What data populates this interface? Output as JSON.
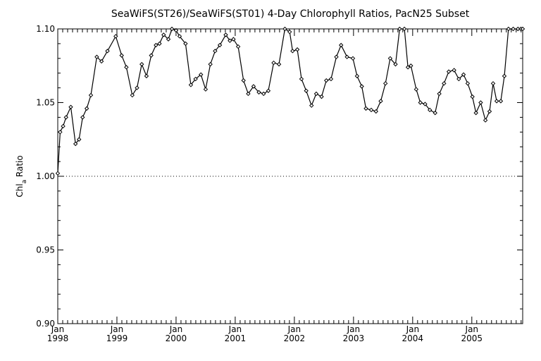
{
  "chart_data": {
    "type": "line",
    "title": "SeaWiFS(ST26)/SeaWiFS(ST01) 4-Day Chlorophyll Ratios, PacN25 Subset",
    "xlabel": "",
    "ylabel_main": "Chl",
    "ylabel_sub": "a",
    "ylabel_rest": " Ratio",
    "ylim": [
      0.9,
      1.1
    ],
    "yticks": [
      "0.90",
      "0.95",
      "1.00",
      "1.05",
      "1.10"
    ],
    "xlim": [
      1998.0,
      2005.86
    ],
    "xticks": [
      {
        "month": "Jan",
        "year": "1998"
      },
      {
        "month": "Jan",
        "year": "1999"
      },
      {
        "month": "Jan",
        "year": "2000"
      },
      {
        "month": "Jan",
        "year": "2001"
      },
      {
        "month": "Jan",
        "year": "2002"
      },
      {
        "month": "Jan",
        "year": "2003"
      },
      {
        "month": "Jan",
        "year": "2004"
      },
      {
        "month": "Jan",
        "year": "2005"
      }
    ],
    "reference_line": 1.0,
    "grid": false,
    "series": [
      {
        "x": [
          1998.0,
          1998.04,
          1998.09,
          1998.14,
          1998.22,
          1998.3,
          1998.36,
          1998.42,
          1998.49,
          1998.56,
          1998.66,
          1998.74,
          1998.84,
          1998.98,
          1999.08,
          1999.16,
          1999.26,
          1999.34,
          1999.42,
          1999.5,
          1999.58,
          1999.66,
          1999.72,
          1999.79,
          1999.87,
          1999.93,
          2000.0,
          2000.06,
          2000.16,
          2000.25,
          2000.33,
          2000.42,
          2000.5,
          2000.58,
          2000.66,
          2000.74,
          2000.84,
          2000.91,
          2000.97,
          2001.05,
          2001.14,
          2001.22,
          2001.31,
          2001.4,
          2001.48,
          2001.56,
          2001.65,
          2001.74,
          2001.84,
          2001.92,
          2001.97,
          2002.05,
          2002.12,
          2002.2,
          2002.29,
          2002.37,
          2002.46,
          2002.54,
          2002.62,
          2002.71,
          2002.79,
          2002.89,
          2002.99,
          2003.06,
          2003.14,
          2003.21,
          2003.3,
          2003.38,
          2003.46,
          2003.54,
          2003.62,
          2003.71,
          2003.78,
          2003.86,
          2003.92,
          2003.97,
          2004.06,
          2004.13,
          2004.21,
          2004.29,
          2004.38,
          2004.45,
          2004.53,
          2004.61,
          2004.7,
          2004.78,
          2004.86,
          2004.93,
          2005.01,
          2005.07,
          2005.15,
          2005.23,
          2005.3,
          2005.36,
          2005.42,
          2005.49,
          2005.55,
          2005.62,
          2005.7,
          2005.78,
          2005.83,
          2005.86
        ],
        "y": [
          1.002,
          1.03,
          1.034,
          1.04,
          1.047,
          1.022,
          1.025,
          1.04,
          1.046,
          1.055,
          1.081,
          1.078,
          1.085,
          1.095,
          1.082,
          1.074,
          1.055,
          1.06,
          1.076,
          1.068,
          1.082,
          1.089,
          1.09,
          1.096,
          1.093,
          1.1,
          1.099,
          1.095,
          1.09,
          1.062,
          1.066,
          1.069,
          1.059,
          1.076,
          1.085,
          1.089,
          1.096,
          1.092,
          1.093,
          1.088,
          1.065,
          1.056,
          1.061,
          1.057,
          1.056,
          1.058,
          1.077,
          1.076,
          1.1,
          1.098,
          1.085,
          1.086,
          1.066,
          1.058,
          1.048,
          1.056,
          1.054,
          1.065,
          1.066,
          1.081,
          1.089,
          1.081,
          1.08,
          1.068,
          1.061,
          1.046,
          1.045,
          1.044,
          1.051,
          1.063,
          1.08,
          1.076,
          1.1,
          1.1,
          1.074,
          1.075,
          1.059,
          1.05,
          1.049,
          1.045,
          1.043,
          1.056,
          1.063,
          1.071,
          1.072,
          1.066,
          1.069,
          1.063,
          1.054,
          1.043,
          1.05,
          1.038,
          1.044,
          1.063,
          1.051,
          1.051,
          1.068,
          1.1,
          1.1,
          1.1,
          1.1,
          1.1
        ]
      }
    ]
  }
}
